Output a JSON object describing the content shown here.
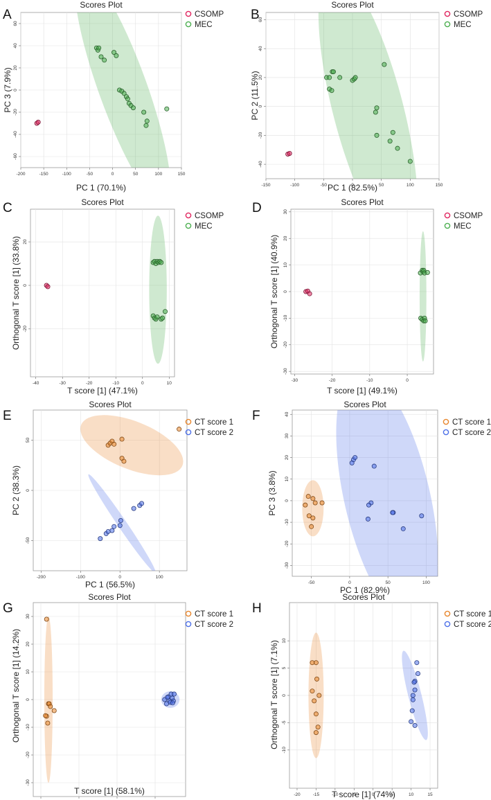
{
  "figure": {
    "background": "#ffffff"
  },
  "chart_data": [
    {
      "panel": "A",
      "type": "scatter",
      "title": "Scores Plot",
      "xlabel": "PC 1 (70.1%)",
      "ylabel": "PC 3 (7.9%)",
      "xlim": [
        -200,
        150
      ],
      "ylim": [
        -70,
        70
      ],
      "xticks": [
        -200,
        -150,
        -100,
        -50,
        0,
        50,
        100,
        150
      ],
      "yticks": [
        -60,
        -40,
        -20,
        0,
        20,
        40,
        60
      ],
      "series": [
        {
          "name": "CSOMP",
          "color": "#e0245e",
          "points": [
            [
              -165,
              -30
            ],
            [
              -162,
              -29
            ]
          ],
          "ellipse": null
        },
        {
          "name": "MEC",
          "color": "#4caf50",
          "points": [
            [
              -35,
              38
            ],
            [
              -32,
              36
            ],
            [
              -30,
              38
            ],
            [
              -25,
              30
            ],
            [
              -18,
              27
            ],
            [
              3,
              34
            ],
            [
              8,
              31
            ],
            [
              15,
              0
            ],
            [
              20,
              -1
            ],
            [
              25,
              -3
            ],
            [
              30,
              -6
            ],
            [
              33,
              -8
            ],
            [
              36,
              -12
            ],
            [
              40,
              -14
            ],
            [
              45,
              -16
            ],
            [
              68,
              -20
            ],
            [
              75,
              -28
            ],
            [
              73,
              -32
            ],
            [
              118,
              -17
            ]
          ],
          "ellipse": {
            "cx": 22,
            "cy": 2,
            "rx": 140,
            "ry": 30,
            "angle": -49
          }
        }
      ]
    },
    {
      "panel": "B",
      "type": "scatter",
      "title": "Scores Plot",
      "xlabel": "PC 1 (82.5%)",
      "ylabel": "PC 2 (11.5%)",
      "xlim": [
        -150,
        150
      ],
      "ylim": [
        -50,
        65
      ],
      "xticks": [
        -150,
        -100,
        -50,
        0,
        50,
        100,
        150
      ],
      "yticks": [
        -40,
        -20,
        0,
        20,
        40,
        60
      ],
      "series": [
        {
          "name": "CSOMP",
          "color": "#e0245e",
          "points": [
            [
              -112,
              -33
            ],
            [
              -109,
              -32.5
            ]
          ],
          "ellipse": null
        },
        {
          "name": "MEC",
          "color": "#4caf50",
          "points": [
            [
              -45,
              20
            ],
            [
              -40,
              20
            ],
            [
              -35,
              24
            ],
            [
              -33,
              24
            ],
            [
              -40,
              12
            ],
            [
              -36,
              11
            ],
            [
              -22,
              20
            ],
            [
              0,
              18
            ],
            [
              3,
              19
            ],
            [
              5,
              20
            ],
            [
              42,
              -1
            ],
            [
              40,
              -4
            ],
            [
              55,
              29
            ],
            [
              42,
              -20
            ],
            [
              65,
              -24
            ],
            [
              70,
              -18
            ],
            [
              78,
              -29
            ],
            [
              100,
              -38
            ]
          ],
          "ellipse": {
            "cx": 27,
            "cy": -2,
            "rx": 115,
            "ry": 38,
            "angle": -57
          }
        }
      ]
    },
    {
      "panel": "C",
      "type": "scatter",
      "title": "Scores Plot",
      "xlabel": "T score [1] (47.1%)",
      "ylabel": "Orthogonal T score [1] (33.8%)",
      "xlim": [
        -42,
        12
      ],
      "ylim": [
        -42,
        35
      ],
      "xticks": [
        -40,
        -30,
        -20,
        -10,
        0,
        10
      ],
      "yticks": [
        -20,
        0,
        20
      ],
      "series": [
        {
          "name": "CSOMP",
          "color": "#e0245e",
          "points": [
            [
              -36,
              0
            ],
            [
              -35.5,
              -0.6
            ]
          ],
          "ellipse": null
        },
        {
          "name": "MEC",
          "color": "#4caf50",
          "points": [
            [
              4,
              10.5
            ],
            [
              4.5,
              11
            ],
            [
              5,
              10
            ],
            [
              5.5,
              11
            ],
            [
              6,
              10.5
            ],
            [
              6.5,
              11
            ],
            [
              7,
              10.5
            ],
            [
              4,
              -14
            ],
            [
              4.5,
              -15
            ],
            [
              5,
              -15.5
            ],
            [
              5.5,
              -14.5
            ],
            [
              7,
              -15.5
            ],
            [
              7.5,
              -15
            ],
            [
              8.5,
              -12
            ]
          ],
          "ellipse": {
            "cx": 5.8,
            "cy": -2,
            "rx": 3.3,
            "ry": 34,
            "angle": 0
          }
        }
      ]
    },
    {
      "panel": "D",
      "type": "scatter",
      "title": "Scores Plot",
      "xlabel": "T score [1] (49.1%)",
      "ylabel": "Orthogonal T score [1] (40.9%)",
      "xlim": [
        -31,
        7
      ],
      "ylim": [
        -31,
        31
      ],
      "xticks": [
        -30,
        -20,
        -10,
        0
      ],
      "yticks": [
        -30,
        -20,
        -10,
        0,
        10,
        20,
        30
      ],
      "series": [
        {
          "name": "CSOMP",
          "color": "#e0245e",
          "points": [
            [
              -27,
              0
            ],
            [
              -26.5,
              0.2
            ],
            [
              -26,
              -0.8
            ]
          ],
          "ellipse": null
        },
        {
          "name": "MEC",
          "color": "#4caf50",
          "points": [
            [
              3.5,
              7
            ],
            [
              4,
              8
            ],
            [
              4.2,
              7.5
            ],
            [
              4.4,
              8
            ],
            [
              4.6,
              7
            ],
            [
              5.4,
              7.2
            ],
            [
              3.6,
              -10
            ],
            [
              4,
              -10.5
            ],
            [
              4.4,
              -11
            ],
            [
              4.6,
              -10
            ],
            [
              4.8,
              -11
            ]
          ],
          "ellipse": {
            "cx": 4.2,
            "cy": -1.8,
            "rx": 0.9,
            "ry": 24.5,
            "angle": 0
          }
        }
      ]
    },
    {
      "panel": "E",
      "type": "scatter",
      "title": "Scores Plot",
      "xlabel": "PC 1 (56.5%)",
      "ylabel": "PC 2 (38.3%)",
      "xlim": [
        -220,
        170
      ],
      "ylim": [
        -80,
        80
      ],
      "xticks": [
        -200,
        -100,
        0,
        100
      ],
      "yticks": [
        -50,
        0,
        50
      ],
      "series": [
        {
          "name": "CT score 1",
          "color": "#e8862c",
          "points": [
            [
              -30,
              45
            ],
            [
              -25,
              47
            ],
            [
              -20,
              49
            ],
            [
              -15,
              46
            ],
            [
              5,
              51
            ],
            [
              5,
              32
            ],
            [
              10,
              29
            ],
            [
              150,
              61
            ]
          ],
          "ellipse": {
            "cx": 30,
            "cy": 45,
            "rx": 130,
            "ry": 24,
            "angle": -9
          }
        },
        {
          "name": "CT score 2",
          "color": "#4c6fe8",
          "points": [
            [
              -50,
              -48
            ],
            [
              -35,
              -43
            ],
            [
              -30,
              -41
            ],
            [
              -20,
              -40
            ],
            [
              -15,
              -36
            ],
            [
              0,
              -35
            ],
            [
              2,
              -30
            ],
            [
              35,
              -18
            ],
            [
              50,
              -15
            ],
            [
              55,
              -13
            ]
          ],
          "ellipse": {
            "cx": 5,
            "cy": -33,
            "rx": 98,
            "ry": 5,
            "angle": -30
          }
        }
      ]
    },
    {
      "panel": "F",
      "type": "scatter",
      "title": "Scores Plot",
      "xlabel": "PC 1 (82.9%)",
      "ylabel": "PC 3 (3.8%)",
      "xlim": [
        -75,
        115
      ],
      "ylim": [
        -35,
        42
      ],
      "xticks": [
        -50,
        0,
        50,
        100
      ],
      "yticks": [
        -30,
        -20,
        -10,
        0,
        10,
        20,
        30,
        40
      ],
      "series": [
        {
          "name": "CT score 1",
          "color": "#e8862c",
          "points": [
            [
              -54,
              2
            ],
            [
              -48,
              1
            ],
            [
              -58,
              -2
            ],
            [
              -45,
              -1
            ],
            [
              -36,
              -1
            ],
            [
              -53,
              -7
            ],
            [
              -48,
              -8
            ],
            [
              -50,
              -12
            ]
          ],
          "ellipse": {
            "cx": -48,
            "cy": -3.5,
            "rx": 14,
            "ry": 13,
            "angle": 0
          }
        },
        {
          "name": "CT score 2",
          "color": "#4c6fe8",
          "points": [
            [
              5,
              19
            ],
            [
              7,
              20
            ],
            [
              3,
              17.5
            ],
            [
              32,
              16
            ],
            [
              28,
              -1
            ],
            [
              25,
              -2
            ],
            [
              24,
              -8.5
            ],
            [
              57,
              -5.5
            ],
            [
              56,
              -5.5
            ],
            [
              70,
              -13
            ],
            [
              94,
              -7
            ]
          ],
          "ellipse": {
            "cx": 49,
            "cy": 1.5,
            "rx": 70,
            "ry": 32,
            "angle": -57
          }
        }
      ]
    },
    {
      "panel": "G",
      "type": "scatter",
      "title": "Scores Plot",
      "xlabel": "T score [1] (58.1%)",
      "ylabel": "Orthogonal T score [1] (14.2%)",
      "xlim": [
        -22,
        18
      ],
      "ylim": [
        -35,
        35
      ],
      "xticks": [
        -20,
        -10,
        0,
        10
      ],
      "yticks": [
        -30,
        -20,
        -10,
        0,
        10,
        20,
        30
      ],
      "series": [
        {
          "name": "CT score 1",
          "color": "#e8862c",
          "points": [
            [
              -18.5,
              29
            ],
            [
              -18,
              -1.5
            ],
            [
              -17.8,
              -1.5
            ],
            [
              -17.5,
              -2.5
            ],
            [
              -16.5,
              -4
            ],
            [
              -18.5,
              -6
            ],
            [
              -18.8,
              -5.8
            ],
            [
              -18.2,
              -8.5
            ]
          ],
          "ellipse": {
            "cx": -18,
            "cy": 0,
            "rx": 1.1,
            "ry": 30,
            "angle": 0
          }
        },
        {
          "name": "CT score 2",
          "color": "#4c6fe8",
          "points": [
            [
              12.5,
              0
            ],
            [
              13,
              -1.5
            ],
            [
              13.5,
              1
            ],
            [
              13.8,
              -0.5
            ],
            [
              14.2,
              2
            ],
            [
              14.5,
              0.5
            ],
            [
              14.8,
              -0.5
            ],
            [
              15,
              2
            ],
            [
              14,
              -1
            ],
            [
              13.2,
              0.8
            ],
            [
              14.6,
              -1.2
            ]
          ],
          "ellipse": {
            "cx": 14,
            "cy": 0,
            "rx": 2.4,
            "ry": 3,
            "angle": 0
          }
        }
      ]
    },
    {
      "panel": "H",
      "type": "scatter",
      "title": "Scores Plot",
      "xlabel": "T score [1] (74%)",
      "ylabel": "Orthogonal T score [1] (7.1%)",
      "xlim": [
        -22,
        17
      ],
      "ylim": [
        -17,
        17
      ],
      "xticks": [
        -20,
        -15,
        -10,
        -5,
        0,
        5,
        10,
        15
      ],
      "yticks": [
        -10,
        -5,
        0,
        5,
        10
      ],
      "series": [
        {
          "name": "CT score 1",
          "color": "#e8862c",
          "points": [
            [
              -16,
              6
            ],
            [
              -15,
              6
            ],
            [
              -14.8,
              3
            ],
            [
              -14.2,
              0
            ],
            [
              -16,
              0.8
            ],
            [
              -15.5,
              -1
            ],
            [
              -15,
              -3.4
            ],
            [
              -14.5,
              -5.8
            ],
            [
              -15,
              -6.8
            ]
          ],
          "ellipse": {
            "cx": -15,
            "cy": 0,
            "rx": 2,
            "ry": 11.5,
            "angle": 0
          }
        },
        {
          "name": "CT score 2",
          "color": "#4c6fe8",
          "points": [
            [
              11.5,
              6
            ],
            [
              11.8,
              4
            ],
            [
              11,
              2.6
            ],
            [
              10.8,
              2.4
            ],
            [
              11,
              1
            ],
            [
              10.5,
              0
            ],
            [
              10.5,
              -0.8
            ],
            [
              10.3,
              -2.8
            ],
            [
              10,
              -4.8
            ],
            [
              11,
              -5.5
            ]
          ],
          "ellipse": {
            "cx": 11,
            "cy": 0,
            "rx": 1.7,
            "ry": 8.5,
            "angle": 10
          }
        }
      ]
    }
  ]
}
